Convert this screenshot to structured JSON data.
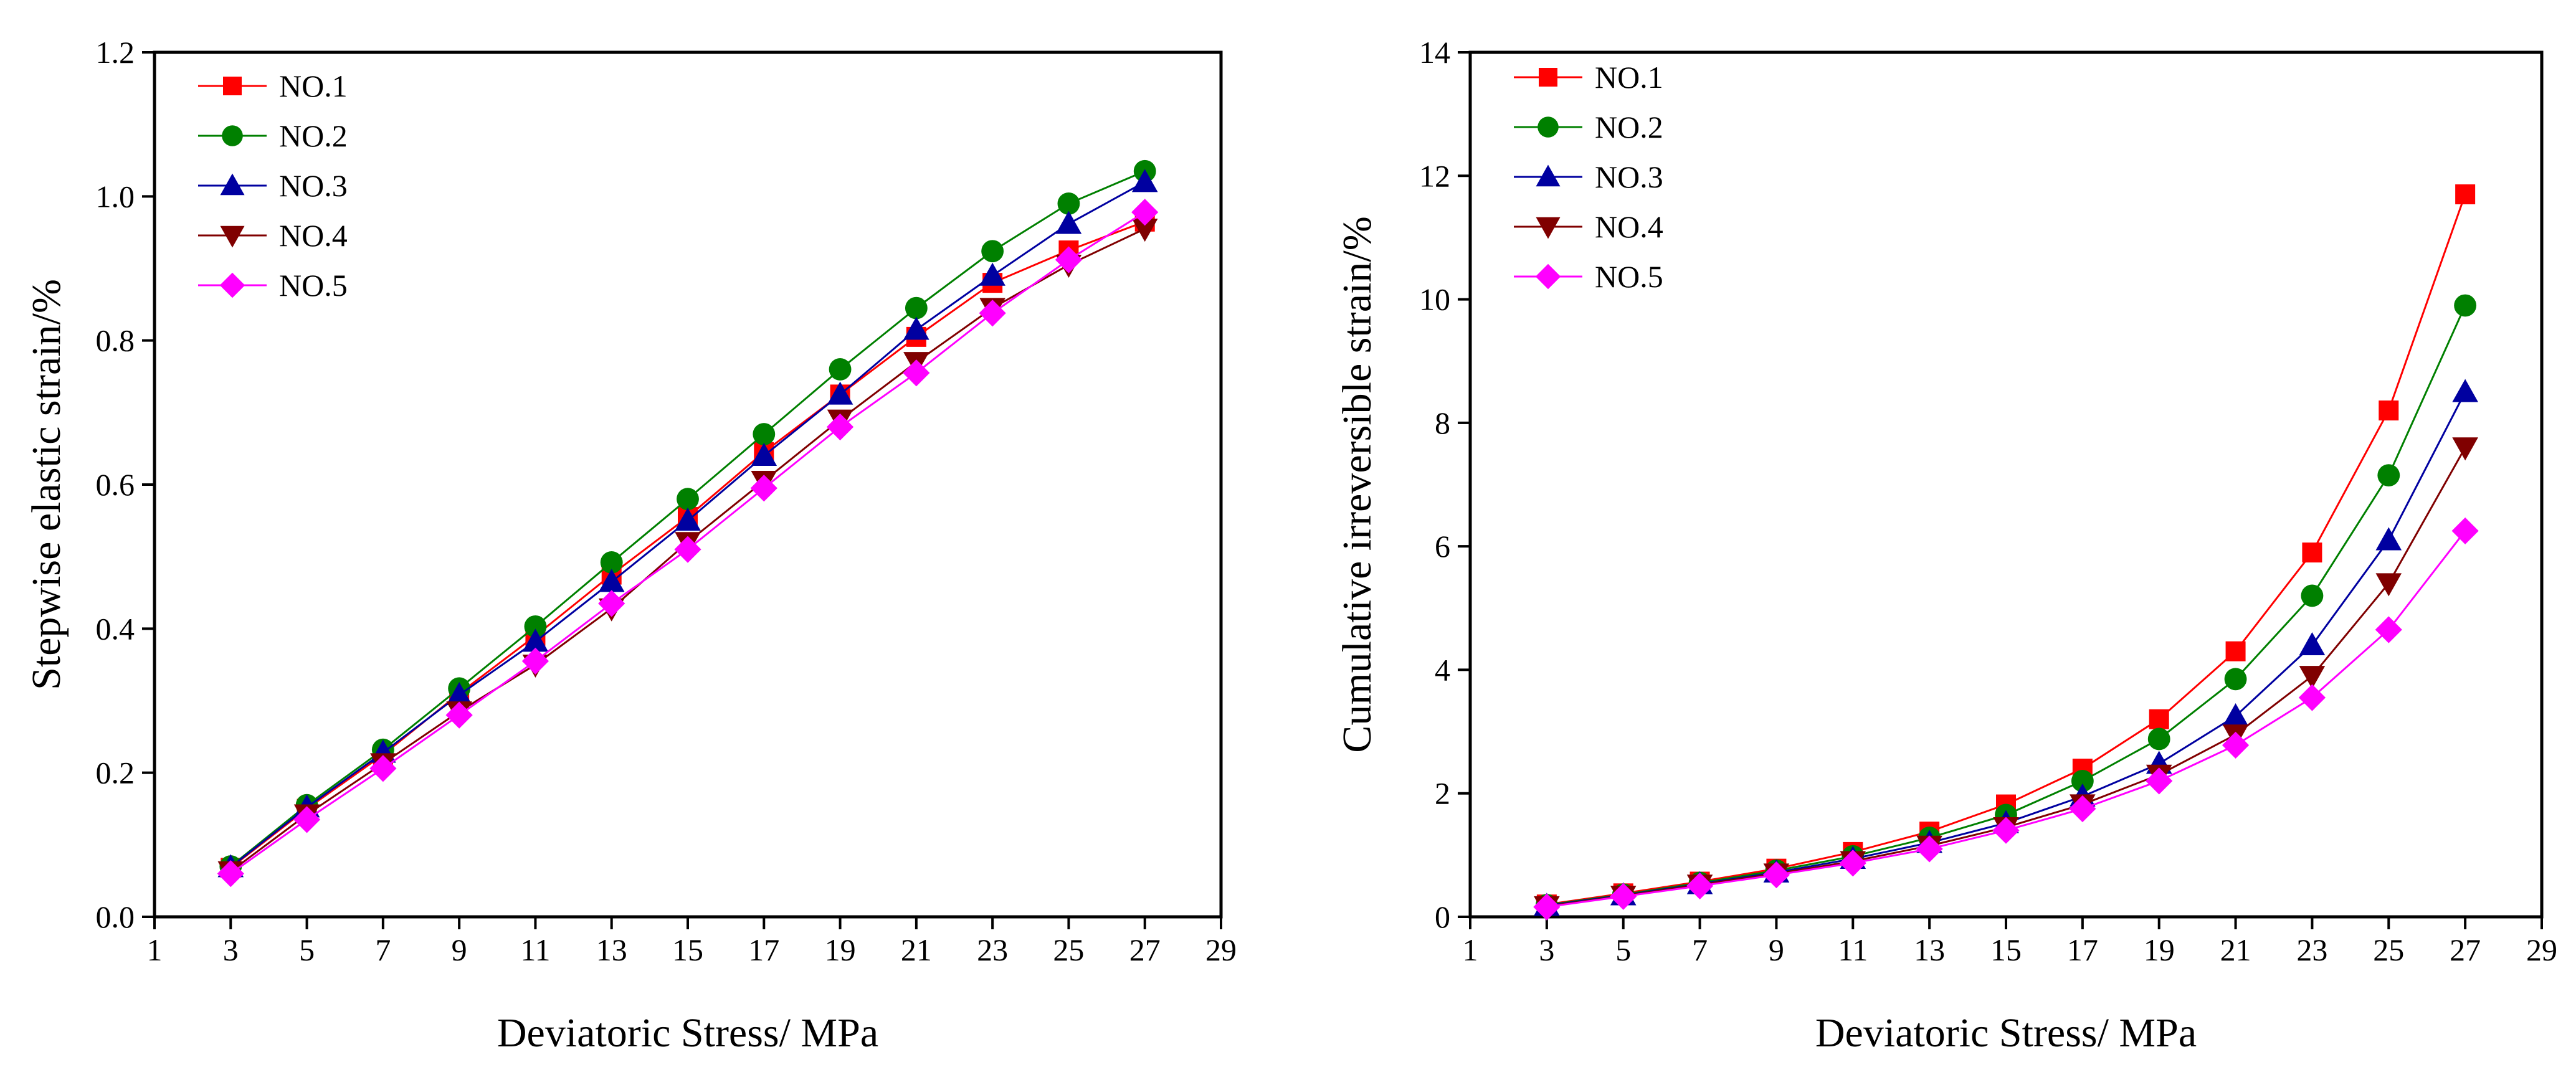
{
  "chart_data": [
    {
      "type": "line",
      "title": "",
      "xlabel": "Deviatoric Stress/ MPa",
      "ylabel": "Stepwise elastic strain/%",
      "xlim": [
        1,
        29
      ],
      "ylim": [
        0,
        1.2
      ],
      "x_ticks": [
        1,
        3,
        5,
        7,
        9,
        11,
        13,
        15,
        17,
        19,
        21,
        23,
        25,
        27,
        29
      ],
      "y_ticks": [
        0,
        0.2,
        0.4,
        0.6,
        0.8,
        1.0,
        1.2
      ],
      "x_tick_labels": [
        "1",
        "3",
        "5",
        "7",
        "9",
        "11",
        "13",
        "15",
        "17",
        "19",
        "21",
        "23",
        "25",
        "27",
        "29"
      ],
      "y_tick_labels": [
        "0.0",
        "0.2",
        "0.4",
        "0.6",
        "0.8",
        "1.0",
        "1.2"
      ],
      "legend_position": "top-left",
      "x": [
        3,
        5,
        7,
        9,
        11,
        13,
        15,
        17,
        19,
        21,
        23,
        25,
        27
      ],
      "series": [
        {
          "name": "NO.1",
          "color": "#ff0000",
          "marker": "square",
          "values": [
            0.068,
            0.15,
            0.225,
            0.31,
            0.39,
            0.475,
            0.555,
            0.645,
            0.725,
            0.805,
            0.88,
            0.925,
            0.965
          ]
        },
        {
          "name": "NO.2",
          "color": "#008000",
          "marker": "circle",
          "values": [
            0.07,
            0.155,
            0.232,
            0.317,
            0.403,
            0.492,
            0.58,
            0.67,
            0.76,
            0.845,
            0.924,
            0.99,
            1.035
          ]
        },
        {
          "name": "NO.3",
          "color": "#0000a0",
          "marker": "triangle-up",
          "values": [
            0.069,
            0.152,
            0.228,
            0.308,
            0.382,
            0.465,
            0.55,
            0.64,
            0.725,
            0.815,
            0.89,
            0.962,
            1.02
          ]
        },
        {
          "name": "NO.4",
          "color": "#800000",
          "marker": "triangle-down",
          "values": [
            0.063,
            0.142,
            0.213,
            0.285,
            0.35,
            0.428,
            0.52,
            0.605,
            0.69,
            0.77,
            0.845,
            0.905,
            0.955
          ]
        },
        {
          "name": "NO.5",
          "color": "#ff00ff",
          "marker": "diamond",
          "values": [
            0.06,
            0.135,
            0.206,
            0.28,
            0.355,
            0.435,
            0.51,
            0.595,
            0.68,
            0.755,
            0.838,
            0.912,
            0.978
          ]
        }
      ]
    },
    {
      "type": "line",
      "title": "",
      "xlabel": "Deviatoric Stress/ MPa",
      "ylabel": "Cumulative irreversible strain/%",
      "xlim": [
        1,
        29
      ],
      "ylim": [
        0,
        14
      ],
      "x_ticks": [
        1,
        3,
        5,
        7,
        9,
        11,
        13,
        15,
        17,
        19,
        21,
        23,
        25,
        27,
        29
      ],
      "y_ticks": [
        0,
        2,
        4,
        6,
        8,
        10,
        12,
        14
      ],
      "x_tick_labels": [
        "1",
        "3",
        "5",
        "7",
        "9",
        "11",
        "13",
        "15",
        "17",
        "19",
        "21",
        "23",
        "25",
        "27",
        "29"
      ],
      "y_tick_labels": [
        "0",
        "2",
        "4",
        "6",
        "8",
        "10",
        "12",
        "14"
      ],
      "legend_position": "top-left",
      "x": [
        3,
        5,
        7,
        9,
        11,
        13,
        15,
        17,
        19,
        21,
        23,
        25,
        27
      ],
      "series": [
        {
          "name": "NO.1",
          "color": "#ff0000",
          "marker": "square",
          "values": [
            0.2,
            0.38,
            0.57,
            0.78,
            1.05,
            1.38,
            1.82,
            2.4,
            3.2,
            4.3,
            5.9,
            8.2,
            11.7
          ]
        },
        {
          "name": "NO.2",
          "color": "#008000",
          "marker": "circle",
          "values": [
            0.19,
            0.36,
            0.55,
            0.75,
            0.98,
            1.28,
            1.65,
            2.2,
            2.88,
            3.85,
            5.2,
            7.15,
            9.9
          ]
        },
        {
          "name": "NO.3",
          "color": "#0000a0",
          "marker": "triangle-up",
          "values": [
            0.18,
            0.35,
            0.53,
            0.72,
            0.94,
            1.2,
            1.52,
            1.95,
            2.48,
            3.25,
            4.4,
            6.1,
            8.5
          ]
        },
        {
          "name": "NO.4",
          "color": "#800000",
          "marker": "triangle-down",
          "values": [
            0.17,
            0.34,
            0.52,
            0.7,
            0.9,
            1.15,
            1.45,
            1.82,
            2.3,
            2.95,
            3.9,
            5.4,
            7.6
          ]
        },
        {
          "name": "NO.5",
          "color": "#ff00ff",
          "marker": "diamond",
          "values": [
            0.16,
            0.33,
            0.5,
            0.68,
            0.87,
            1.1,
            1.4,
            1.75,
            2.2,
            2.78,
            3.55,
            4.65,
            6.25
          ]
        }
      ]
    }
  ]
}
